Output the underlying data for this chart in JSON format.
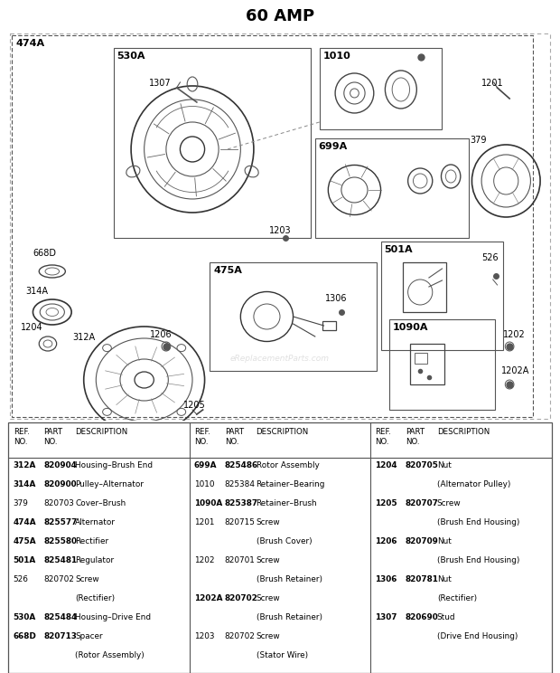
{
  "title": "60 AMP",
  "bg_color": "#ffffff",
  "columns": [
    {
      "rows": [
        [
          "312A",
          "820904",
          "Housing–Brush End",
          true
        ],
        [
          "314A",
          "820900",
          "Pulley–Alternator",
          true
        ],
        [
          "379",
          "820703",
          "Cover–Brush",
          false
        ],
        [
          "474A",
          "825577",
          "Alternator",
          true
        ],
        [
          "475A",
          "825580",
          "Rectifier",
          true
        ],
        [
          "501A",
          "825481",
          "Regulator",
          true
        ],
        [
          "526",
          "820702",
          "Screw",
          false
        ],
        [
          "",
          "",
          "(Rectifier)",
          false
        ],
        [
          "530A",
          "825484",
          "Housing–Drive End",
          true
        ],
        [
          "668D",
          "820713",
          "Spacer",
          true
        ],
        [
          "",
          "",
          "(Rotor Assembly)",
          false
        ]
      ]
    },
    {
      "rows": [
        [
          "699A",
          "825486",
          "Rotor Assembly",
          true
        ],
        [
          "1010",
          "825384",
          "Retainer–Bearing",
          false
        ],
        [
          "1090A",
          "825387",
          "Retainer–Brush",
          true
        ],
        [
          "1201",
          "820715",
          "Screw",
          false
        ],
        [
          "",
          "",
          "(Brush Cover)",
          false
        ],
        [
          "1202",
          "820701",
          "Screw",
          false
        ],
        [
          "",
          "",
          "(Brush Retainer)",
          false
        ],
        [
          "1202A",
          "820702",
          "Screw",
          true
        ],
        [
          "",
          "",
          "(Brush Retainer)",
          false
        ],
        [
          "1203",
          "820702",
          "Screw",
          false
        ],
        [
          "",
          "",
          "(Stator Wire)",
          false
        ]
      ]
    },
    {
      "rows": [
        [
          "1204",
          "820705",
          "Nut",
          true
        ],
        [
          "",
          "",
          "(Alternator Pulley)",
          false
        ],
        [
          "1205",
          "820707",
          "Screw",
          true
        ],
        [
          "",
          "",
          "(Brush End Housing)",
          false
        ],
        [
          "1206",
          "820709",
          "Nut",
          true
        ],
        [
          "",
          "",
          "(Brush End Housing)",
          false
        ],
        [
          "1306",
          "820781",
          "Nut",
          true
        ],
        [
          "",
          "",
          "(Rectifier)",
          false
        ],
        [
          "1307",
          "820690",
          "Stud",
          true
        ],
        [
          "",
          "",
          "(Drive End Housing)",
          false
        ]
      ]
    }
  ]
}
